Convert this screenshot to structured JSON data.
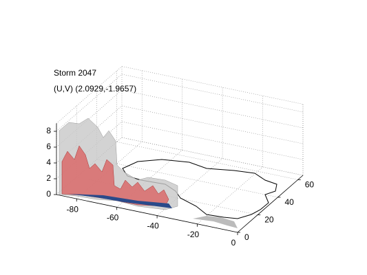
{
  "chart_data": {
    "type": "isosurface3d",
    "title": "Storm 2047",
    "subtitle": "(U,V) (2.0929,-1.9657)",
    "xlim": [
      -90,
      0
    ],
    "xticks": [
      -80,
      -60,
      -40,
      -20,
      0
    ],
    "ylim": [
      0,
      65
    ],
    "yticks": [
      0,
      20,
      40,
      60
    ],
    "zlim": [
      0,
      9
    ],
    "zticks": [
      0,
      2,
      4,
      6,
      8
    ],
    "grid": true
  }
}
